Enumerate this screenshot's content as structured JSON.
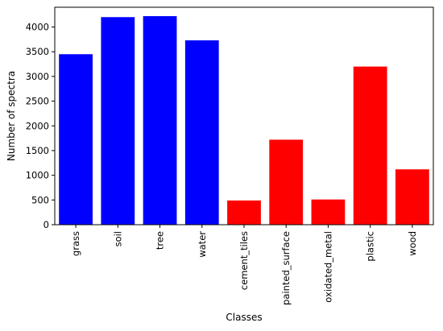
{
  "chart_data": {
    "type": "bar",
    "title": "",
    "xlabel": "Classes",
    "ylabel": "Number of spectra",
    "categories": [
      "grass",
      "soil",
      "tree",
      "water",
      "cement_tiles",
      "painted_surface",
      "oxidated_metal",
      "plastic",
      "wood"
    ],
    "values": [
      3450,
      4200,
      4220,
      3730,
      490,
      1720,
      510,
      3200,
      1120
    ],
    "bar_colors": [
      "#0000ff",
      "#0000ff",
      "#0000ff",
      "#0000ff",
      "#ff0000",
      "#ff0000",
      "#ff0000",
      "#ff0000",
      "#ff0000"
    ],
    "ylim": [
      0,
      4400
    ],
    "yticks": [
      0,
      500,
      1000,
      1500,
      2000,
      2500,
      3000,
      3500,
      4000
    ],
    "grid": false,
    "legend": false
  }
}
